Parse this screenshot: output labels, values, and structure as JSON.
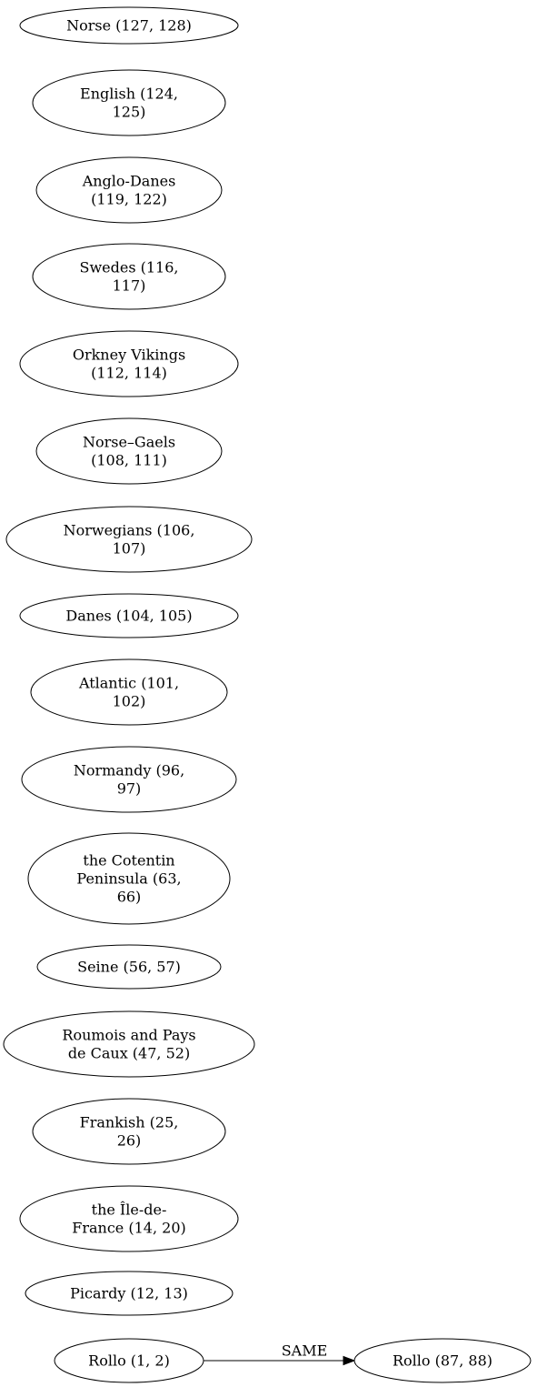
{
  "nodes": [
    {
      "id": "norse",
      "lines": [
        "Norse (127, 128)"
      ]
    },
    {
      "id": "english",
      "lines": [
        "English (124,",
        "125)"
      ]
    },
    {
      "id": "anglo-danes",
      "lines": [
        "Anglo-Danes",
        "(119, 122)"
      ]
    },
    {
      "id": "swedes",
      "lines": [
        "Swedes (116,",
        "117)"
      ]
    },
    {
      "id": "orkney-vikings",
      "lines": [
        "Orkney Vikings",
        "(112, 114)"
      ]
    },
    {
      "id": "norse-gaels",
      "lines": [
        "Norse–Gaels",
        "(108, 111)"
      ]
    },
    {
      "id": "norwegians",
      "lines": [
        "Norwegians (106,",
        "107)"
      ]
    },
    {
      "id": "danes",
      "lines": [
        "Danes (104, 105)"
      ]
    },
    {
      "id": "atlantic",
      "lines": [
        "Atlantic (101,",
        "102)"
      ]
    },
    {
      "id": "normandy",
      "lines": [
        "Normandy (96,",
        "97)"
      ]
    },
    {
      "id": "cotentin",
      "lines": [
        "the Cotentin",
        "Peninsula (63,",
        "66)"
      ]
    },
    {
      "id": "seine",
      "lines": [
        "Seine (56, 57)"
      ]
    },
    {
      "id": "roumois",
      "lines": [
        "Roumois and Pays",
        "de Caux (47, 52)"
      ]
    },
    {
      "id": "frankish",
      "lines": [
        "Frankish (25,",
        "26)"
      ]
    },
    {
      "id": "ile-de-france",
      "lines": [
        "the Île-de-",
        "France (14, 20)"
      ]
    },
    {
      "id": "picardy",
      "lines": [
        "Picardy (12, 13)"
      ]
    },
    {
      "id": "rollo-1-2",
      "lines": [
        "Rollo (1, 2)"
      ]
    },
    {
      "id": "rollo-87-88",
      "lines": [
        "Rollo (87, 88)"
      ]
    }
  ],
  "edges": [
    {
      "from": "rollo-1-2",
      "to": "rollo-87-88",
      "label": "SAME"
    }
  ]
}
